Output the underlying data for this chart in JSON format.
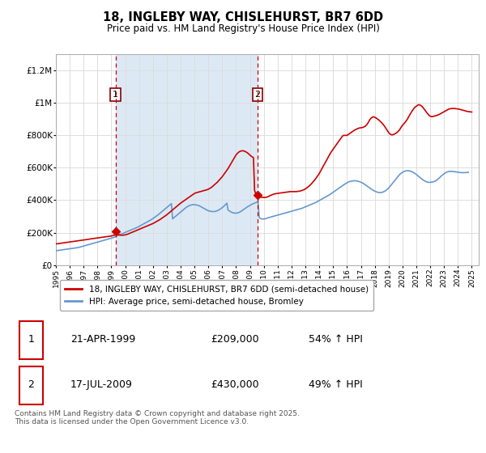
{
  "title": "18, INGLEBY WAY, CHISLEHURST, BR7 6DD",
  "subtitle": "Price paid vs. HM Land Registry's House Price Index (HPI)",
  "ylim": [
    0,
    1300000
  ],
  "yticks": [
    0,
    200000,
    400000,
    600000,
    800000,
    1000000,
    1200000
  ],
  "ytick_labels": [
    "£0",
    "£200K",
    "£400K",
    "£600K",
    "£800K",
    "£1M",
    "£1.2M"
  ],
  "plot_bg_color": "#ffffff",
  "shade_color": "#dce9f5",
  "red_color": "#cc0000",
  "blue_color": "#6699cc",
  "vline_color": "#cc0000",
  "purchase1_year": 1999.31,
  "purchase1_price": 209000,
  "purchase1_label": "1",
  "purchase2_year": 2009.54,
  "purchase2_price": 430000,
  "purchase2_label": "2",
  "legend_label_red": "18, INGLEBY WAY, CHISLEHURST, BR7 6DD (semi-detached house)",
  "legend_label_blue": "HPI: Average price, semi-detached house, Bromley",
  "table_data": [
    [
      "1",
      "21-APR-1999",
      "£209,000",
      "54% ↑ HPI"
    ],
    [
      "2",
      "17-JUL-2009",
      "£430,000",
      "49% ↑ HPI"
    ]
  ],
  "footnote": "Contains HM Land Registry data © Crown copyright and database right 2025.\nThis data is licensed under the Open Government Licence v3.0.",
  "xmin": 1995,
  "xmax": 2025.5,
  "red_x": [
    1995.0,
    1995.083,
    1995.167,
    1995.25,
    1995.333,
    1995.417,
    1995.5,
    1995.583,
    1995.667,
    1995.75,
    1995.833,
    1995.917,
    1996.0,
    1996.083,
    1996.167,
    1996.25,
    1996.333,
    1996.417,
    1996.5,
    1996.583,
    1996.667,
    1996.75,
    1996.833,
    1996.917,
    1997.0,
    1997.083,
    1997.167,
    1997.25,
    1997.333,
    1997.417,
    1997.5,
    1997.583,
    1997.667,
    1997.75,
    1997.833,
    1997.917,
    1998.0,
    1998.083,
    1998.167,
    1998.25,
    1998.333,
    1998.417,
    1998.5,
    1998.583,
    1998.667,
    1998.75,
    1998.833,
    1998.917,
    1999.0,
    1999.083,
    1999.167,
    1999.25,
    1999.31,
    1999.333,
    1999.417,
    1999.5,
    1999.583,
    1999.667,
    1999.75,
    1999.833,
    1999.917,
    2000.0,
    2000.083,
    2000.167,
    2000.25,
    2000.333,
    2000.417,
    2000.5,
    2000.583,
    2000.667,
    2000.75,
    2000.833,
    2000.917,
    2001.0,
    2001.083,
    2001.167,
    2001.25,
    2001.333,
    2001.417,
    2001.5,
    2001.583,
    2001.667,
    2001.75,
    2001.833,
    2001.917,
    2002.0,
    2002.083,
    2002.167,
    2002.25,
    2002.333,
    2002.417,
    2002.5,
    2002.583,
    2002.667,
    2002.75,
    2002.833,
    2002.917,
    2003.0,
    2003.083,
    2003.167,
    2003.25,
    2003.333,
    2003.417,
    2003.5,
    2003.583,
    2003.667,
    2003.75,
    2003.833,
    2003.917,
    2004.0,
    2004.083,
    2004.167,
    2004.25,
    2004.333,
    2004.417,
    2004.5,
    2004.583,
    2004.667,
    2004.75,
    2004.833,
    2004.917,
    2005.0,
    2005.083,
    2005.167,
    2005.25,
    2005.333,
    2005.417,
    2005.5,
    2005.583,
    2005.667,
    2005.75,
    2005.833,
    2005.917,
    2006.0,
    2006.083,
    2006.167,
    2006.25,
    2006.333,
    2006.417,
    2006.5,
    2006.583,
    2006.667,
    2006.75,
    2006.833,
    2006.917,
    2007.0,
    2007.083,
    2007.167,
    2007.25,
    2007.333,
    2007.417,
    2007.5,
    2007.583,
    2007.667,
    2007.75,
    2007.833,
    2007.917,
    2008.0,
    2008.083,
    2008.167,
    2008.25,
    2008.333,
    2008.417,
    2008.5,
    2008.583,
    2008.667,
    2008.75,
    2008.833,
    2008.917,
    2009.0,
    2009.083,
    2009.167,
    2009.25,
    2009.333,
    2009.417,
    2009.5,
    2009.54,
    2009.583,
    2009.667,
    2009.75,
    2009.833,
    2009.917,
    2010.0,
    2010.083,
    2010.167,
    2010.25,
    2010.333,
    2010.417,
    2010.5,
    2010.583,
    2010.667,
    2010.75,
    2010.833,
    2010.917,
    2011.0,
    2011.083,
    2011.167,
    2011.25,
    2011.333,
    2011.417,
    2011.5,
    2011.583,
    2011.667,
    2011.75,
    2011.833,
    2011.917,
    2012.0,
    2012.083,
    2012.167,
    2012.25,
    2012.333,
    2012.417,
    2012.5,
    2012.583,
    2012.667,
    2012.75,
    2012.833,
    2012.917,
    2013.0,
    2013.083,
    2013.167,
    2013.25,
    2013.333,
    2013.417,
    2013.5,
    2013.583,
    2013.667,
    2013.75,
    2013.833,
    2013.917,
    2014.0,
    2014.083,
    2014.167,
    2014.25,
    2014.333,
    2014.417,
    2014.5,
    2014.583,
    2014.667,
    2014.75,
    2014.833,
    2014.917,
    2015.0,
    2015.083,
    2015.167,
    2015.25,
    2015.333,
    2015.417,
    2015.5,
    2015.583,
    2015.667,
    2015.75,
    2015.833,
    2015.917,
    2016.0,
    2016.083,
    2016.167,
    2016.25,
    2016.333,
    2016.417,
    2016.5,
    2016.583,
    2016.667,
    2016.75,
    2016.833,
    2016.917,
    2017.0,
    2017.083,
    2017.167,
    2017.25,
    2017.333,
    2017.417,
    2017.5,
    2017.583,
    2017.667,
    2017.75,
    2017.833,
    2017.917,
    2018.0,
    2018.083,
    2018.167,
    2018.25,
    2018.333,
    2018.417,
    2018.5,
    2018.583,
    2018.667,
    2018.75,
    2018.833,
    2018.917,
    2019.0,
    2019.083,
    2019.167,
    2019.25,
    2019.333,
    2019.417,
    2019.5,
    2019.583,
    2019.667,
    2019.75,
    2019.833,
    2019.917,
    2020.0,
    2020.083,
    2020.167,
    2020.25,
    2020.333,
    2020.417,
    2020.5,
    2020.583,
    2020.667,
    2020.75,
    2020.833,
    2020.917,
    2021.0,
    2021.083,
    2021.167,
    2021.25,
    2021.333,
    2021.417,
    2021.5,
    2021.583,
    2021.667,
    2021.75,
    2021.833,
    2021.917,
    2022.0,
    2022.083,
    2022.167,
    2022.25,
    2022.333,
    2022.417,
    2022.5,
    2022.583,
    2022.667,
    2022.75,
    2022.833,
    2022.917,
    2023.0,
    2023.083,
    2023.167,
    2023.25,
    2023.333,
    2023.417,
    2023.5,
    2023.583,
    2023.667,
    2023.75,
    2023.833,
    2023.917,
    2024.0,
    2024.083,
    2024.167,
    2024.25,
    2024.333,
    2024.417,
    2024.5,
    2024.583,
    2024.667,
    2024.75,
    2024.833,
    2024.917,
    2025.0
  ],
  "red_y_base": [
    130000,
    131000,
    132000,
    133000,
    134000,
    135000,
    136000,
    137000,
    138000,
    139000,
    140000,
    141000,
    142000,
    143000,
    144000,
    145000,
    146000,
    147000,
    148000,
    149000,
    150000,
    151000,
    152000,
    153000,
    154000,
    155000,
    156000,
    157000,
    158500,
    160000,
    161000,
    162000,
    163000,
    164000,
    165000,
    166000,
    167000,
    168000,
    169000,
    170000,
    171000,
    172000,
    173000,
    174000,
    175000,
    176000,
    177000,
    178000,
    179000,
    181000,
    183000,
    186000,
    209000,
    195000,
    190000,
    187000,
    185000,
    184000,
    184000,
    184000,
    185000,
    186000,
    188000,
    190000,
    193000,
    196000,
    199000,
    202000,
    205000,
    208000,
    211000,
    214000,
    217000,
    220000,
    223000,
    226000,
    229000,
    232000,
    235000,
    238000,
    241000,
    244000,
    247000,
    250000,
    253000,
    256000,
    260000,
    264000,
    268000,
    272000,
    276000,
    280000,
    285000,
    290000,
    295000,
    300000,
    305000,
    310000,
    316000,
    322000,
    328000,
    334000,
    340000,
    346000,
    352000,
    358000,
    364000,
    370000,
    376000,
    382000,
    387000,
    392000,
    397000,
    402000,
    407000,
    412000,
    417000,
    422000,
    427000,
    432000,
    437000,
    442000,
    445000,
    447000,
    449000,
    451000,
    453000,
    455000,
    457000,
    459000,
    461000,
    463000,
    465000,
    468000,
    472000,
    476000,
    481000,
    487000,
    494000,
    500000,
    506000,
    513000,
    521000,
    529000,
    537000,
    545000,
    555000,
    565000,
    575000,
    585000,
    595000,
    607000,
    619000,
    631000,
    643000,
    656000,
    668000,
    680000,
    688000,
    695000,
    700000,
    703000,
    705000,
    705000,
    703000,
    700000,
    696000,
    691000,
    685000,
    678000,
    672000,
    667000,
    663000,
    460000,
    440000,
    435000,
    430000,
    425000,
    422000,
    420000,
    418000,
    417000,
    417000,
    417000,
    418000,
    420000,
    423000,
    427000,
    430000,
    433000,
    436000,
    438000,
    440000,
    441000,
    442000,
    443000,
    444000,
    445000,
    446000,
    447000,
    448000,
    449000,
    450000,
    451000,
    452000,
    453000,
    453000,
    453000,
    453000,
    453000,
    453000,
    454000,
    455000,
    456000,
    458000,
    460000,
    463000,
    466000,
    470000,
    475000,
    480000,
    486000,
    493000,
    500000,
    508000,
    516000,
    525000,
    534000,
    544000,
    554000,
    565000,
    578000,
    591000,
    604000,
    617000,
    630000,
    644000,
    657000,
    670000,
    682000,
    694000,
    705000,
    715000,
    725000,
    735000,
    745000,
    755000,
    765000,
    775000,
    785000,
    795000,
    800000,
    800000,
    800000,
    800000,
    805000,
    810000,
    815000,
    820000,
    825000,
    830000,
    834000,
    838000,
    841000,
    844000,
    846000,
    847000,
    848000,
    850000,
    853000,
    858000,
    865000,
    875000,
    888000,
    900000,
    908000,
    912000,
    915000,
    912000,
    908000,
    903000,
    898000,
    892000,
    885000,
    878000,
    870000,
    861000,
    851000,
    840000,
    829000,
    818000,
    810000,
    805000,
    803000,
    805000,
    808000,
    812000,
    817000,
    823000,
    830000,
    840000,
    852000,
    862000,
    870000,
    878000,
    887000,
    897000,
    910000,
    922000,
    935000,
    947000,
    957000,
    967000,
    975000,
    980000,
    985000,
    990000,
    988000,
    984000,
    978000,
    970000,
    961000,
    951000,
    941000,
    932000,
    924000,
    918000,
    916000,
    916000,
    918000,
    920000,
    922000,
    924000,
    927000,
    930000,
    934000,
    938000,
    942000,
    946000,
    950000,
    954000,
    958000,
    962000,
    964000,
    965000,
    966000,
    966000,
    966000,
    965000,
    964000,
    963000,
    962000,
    960000,
    958000,
    956000,
    954000,
    952000,
    950000,
    948000,
    947000,
    946000,
    945000,
    944000
  ],
  "blue_y_base": [
    88000,
    89000,
    90000,
    91000,
    92000,
    93000,
    94000,
    95000,
    96000,
    97000,
    98000,
    99000,
    100000,
    101000,
    102000,
    103000,
    104000,
    105000,
    106000,
    107500,
    109000,
    111000,
    113000,
    115000,
    117000,
    119000,
    121000,
    123000,
    125000,
    127000,
    129000,
    131000,
    133000,
    135000,
    137000,
    139000,
    141000,
    143000,
    145000,
    147000,
    149000,
    151000,
    153000,
    155000,
    157000,
    159000,
    161000,
    163000,
    165000,
    167500,
    170000,
    172500,
    175000,
    177500,
    180000,
    183000,
    186000,
    189000,
    192000,
    195000,
    198000,
    201000,
    204000,
    207000,
    210000,
    213000,
    216000,
    219000,
    222000,
    225000,
    228000,
    231000,
    234000,
    238000,
    242000,
    246000,
    250000,
    254000,
    258000,
    262000,
    266000,
    270000,
    274000,
    278000,
    282000,
    287000,
    292000,
    297000,
    302000,
    307000,
    313000,
    319000,
    325000,
    331000,
    337000,
    343000,
    349000,
    355000,
    361000,
    367000,
    373000,
    379000,
    285000,
    291000,
    297000,
    303000,
    309000,
    315000,
    321000,
    327000,
    333000,
    339000,
    345000,
    351000,
    357000,
    361000,
    365000,
    368000,
    370000,
    372000,
    373000,
    372000,
    371000,
    370000,
    368000,
    366000,
    362000,
    358000,
    354000,
    350000,
    346000,
    342000,
    338000,
    335000,
    333000,
    331000,
    330000,
    330000,
    330000,
    331000,
    333000,
    336000,
    340000,
    344000,
    349000,
    354000,
    360000,
    367000,
    374000,
    382000,
    340000,
    335000,
    330000,
    326000,
    323000,
    321000,
    320000,
    320000,
    321000,
    323000,
    326000,
    330000,
    335000,
    340000,
    345000,
    350000,
    355000,
    360000,
    364000,
    368000,
    372000,
    376000,
    379000,
    382000,
    385000,
    387000,
    389000,
    391000,
    293000,
    287000,
    285000,
    284000,
    284000,
    285000,
    287000,
    290000,
    292000,
    294000,
    296000,
    298000,
    300000,
    302000,
    304000,
    306000,
    308000,
    310000,
    312000,
    314000,
    316000,
    318000,
    320000,
    322000,
    324000,
    326000,
    328000,
    330000,
    332000,
    334000,
    336000,
    338000,
    340000,
    342000,
    344000,
    346000,
    348000,
    350000,
    353000,
    356000,
    359000,
    362000,
    365000,
    368000,
    371000,
    374000,
    377000,
    380000,
    383000,
    386000,
    390000,
    394000,
    398000,
    402000,
    406000,
    410000,
    414000,
    418000,
    422000,
    426000,
    430000,
    434000,
    439000,
    444000,
    449000,
    454000,
    459000,
    464000,
    469000,
    474000,
    479000,
    484000,
    489000,
    494000,
    499000,
    503000,
    507000,
    511000,
    514000,
    516000,
    518000,
    519000,
    520000,
    520000,
    519000,
    518000,
    516000,
    514000,
    511000,
    508000,
    504000,
    499000,
    494000,
    489000,
    484000,
    479000,
    474000,
    469000,
    464000,
    460000,
    456000,
    453000,
    450000,
    448000,
    447000,
    447000,
    448000,
    450000,
    453000,
    457000,
    462000,
    468000,
    475000,
    483000,
    492000,
    501000,
    510000,
    519000,
    528000,
    537000,
    546000,
    554000,
    561000,
    567000,
    572000,
    576000,
    579000,
    581000,
    582000,
    582000,
    581000,
    579000,
    576000,
    573000,
    569000,
    564000,
    559000,
    553000,
    547000,
    541000,
    535000,
    529000,
    524000,
    520000,
    516000,
    513000,
    511000,
    510000,
    510000,
    511000,
    512000,
    514000,
    517000,
    521000,
    526000,
    532000,
    538000,
    545000,
    552000,
    558000,
    563000,
    568000,
    572000,
    575000,
    577000,
    578000,
    578000,
    578000,
    577000,
    576000,
    575000,
    574000,
    573000,
    572000,
    571000,
    570000,
    570000,
    570000,
    570000,
    571000,
    571000,
    572000
  ]
}
